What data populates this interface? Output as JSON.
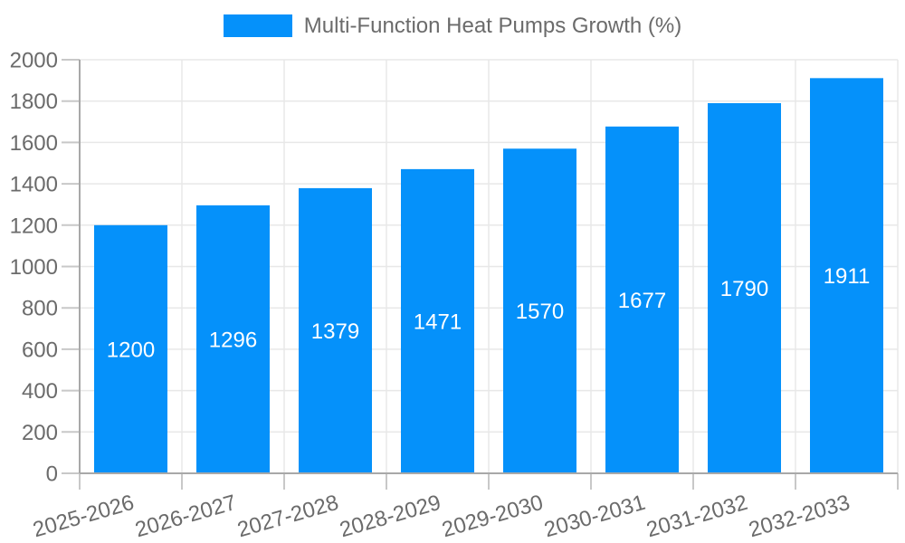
{
  "legend": {
    "label": "Multi-Function Heat Pumps Growth (%)"
  },
  "chart_data": {
    "type": "bar",
    "title": "Multi-Function Heat Pumps Growth (%)",
    "categories": [
      "2025-2026",
      "2026-2027",
      "2027-2028",
      "2028-2029",
      "2029-2030",
      "2030-2031",
      "2031-2032",
      "2032-2033"
    ],
    "values": [
      1200,
      1296,
      1379,
      1471,
      1570,
      1677,
      1790,
      1911
    ],
    "value_labels": [
      "1200",
      "1296",
      "1379",
      "1471",
      "1570",
      "1677",
      "1790",
      "1911"
    ],
    "xlabel": "",
    "ylabel": "",
    "ylim": [
      0,
      2000
    ],
    "ytick_step": 200,
    "ytick_labels": [
      "0",
      "200",
      "400",
      "600",
      "800",
      "1000",
      "1200",
      "1400",
      "1600",
      "1800",
      "2000"
    ],
    "grid": true,
    "legend_position": "top",
    "value_label_position": "inside-center",
    "xtick_label_rotation_deg": -16,
    "colors": {
      "bar": "#0591fa",
      "grid": "#e8e8e8",
      "axis": "#a8a8a8",
      "tick": "#c8c8c8",
      "text": "#6b6b6b",
      "value_label": "#ffffff",
      "background": "#ffffff"
    }
  }
}
